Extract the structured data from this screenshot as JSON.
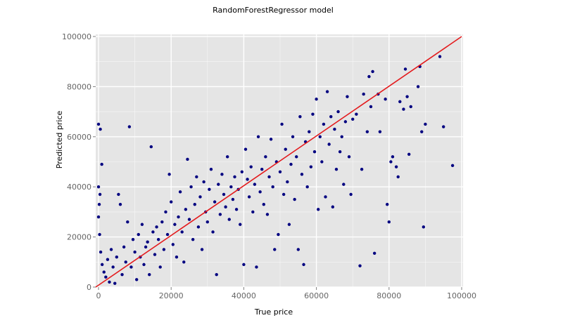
{
  "chart_data": {
    "type": "scatter",
    "title": "RandomForestRegressor model",
    "xlabel": "True price",
    "ylabel": "Predicted price",
    "xlim": [
      0,
      100000
    ],
    "ylim": [
      0,
      100000
    ],
    "x_ticks": [
      0,
      20000,
      40000,
      60000,
      80000,
      100000
    ],
    "y_ticks": [
      0,
      20000,
      40000,
      60000,
      80000,
      100000
    ],
    "x_tick_labels": [
      "0",
      "20000",
      "40000",
      "60000",
      "80000",
      "100000"
    ],
    "y_tick_labels": [
      "0",
      "20000",
      "40000",
      "60000",
      "80000",
      "100000"
    ],
    "grid": true,
    "legend": "none",
    "colors": {
      "points": "#000080",
      "reference_line": "#e41a1c",
      "panel": "#e5e5e5",
      "grid": "#ffffff"
    },
    "reference_line": {
      "x": [
        0,
        100000
      ],
      "y": [
        0,
        100000
      ]
    },
    "series": [
      {
        "values_xy": [
          [
            0,
            65000
          ],
          [
            500,
            63000
          ],
          [
            900,
            49000
          ],
          [
            0,
            40000
          ],
          [
            400,
            37000
          ],
          [
            200,
            33000
          ],
          [
            0,
            28000
          ],
          [
            300,
            21000
          ],
          [
            600,
            14000
          ],
          [
            1000,
            9000
          ],
          [
            1500,
            6000
          ],
          [
            2000,
            4000
          ],
          [
            2500,
            11000
          ],
          [
            3000,
            2000
          ],
          [
            3500,
            15000
          ],
          [
            4000,
            8000
          ],
          [
            4500,
            1500
          ],
          [
            5000,
            12000
          ],
          [
            5500,
            37000
          ],
          [
            6000,
            33000
          ],
          [
            6500,
            5000
          ],
          [
            7000,
            16000
          ],
          [
            7500,
            10000
          ],
          [
            8000,
            26000
          ],
          [
            8500,
            64000
          ],
          [
            9000,
            8000
          ],
          [
            9500,
            19000
          ],
          [
            10000,
            14000
          ],
          [
            10500,
            3000
          ],
          [
            11000,
            21000
          ],
          [
            11500,
            12000
          ],
          [
            12000,
            25000
          ],
          [
            12500,
            9000
          ],
          [
            13000,
            16000
          ],
          [
            13500,
            18000
          ],
          [
            14000,
            5000
          ],
          [
            14500,
            56000
          ],
          [
            15000,
            22000
          ],
          [
            15500,
            13000
          ],
          [
            16000,
            24000
          ],
          [
            16500,
            19000
          ],
          [
            17000,
            8000
          ],
          [
            17500,
            26000
          ],
          [
            18000,
            15000
          ],
          [
            18500,
            30000
          ],
          [
            19000,
            21000
          ],
          [
            19500,
            45000
          ],
          [
            20000,
            34000
          ],
          [
            20500,
            17000
          ],
          [
            21000,
            25000
          ],
          [
            21500,
            12000
          ],
          [
            22000,
            28000
          ],
          [
            22500,
            38000
          ],
          [
            23000,
            22000
          ],
          [
            23500,
            10000
          ],
          [
            24000,
            31000
          ],
          [
            24500,
            51000
          ],
          [
            25000,
            27000
          ],
          [
            25500,
            40000
          ],
          [
            26000,
            19000
          ],
          [
            26500,
            33000
          ],
          [
            27000,
            44000
          ],
          [
            27500,
            24000
          ],
          [
            28000,
            36000
          ],
          [
            28500,
            15000
          ],
          [
            29000,
            42000
          ],
          [
            29500,
            30000
          ],
          [
            30000,
            26000
          ],
          [
            30500,
            39000
          ],
          [
            31000,
            47000
          ],
          [
            31500,
            22000
          ],
          [
            32000,
            34000
          ],
          [
            32500,
            5000
          ],
          [
            33000,
            41000
          ],
          [
            33500,
            29000
          ],
          [
            34000,
            45000
          ],
          [
            34500,
            37000
          ],
          [
            35000,
            32000
          ],
          [
            35500,
            52000
          ],
          [
            36000,
            27000
          ],
          [
            36500,
            40000
          ],
          [
            37000,
            35000
          ],
          [
            37500,
            44000
          ],
          [
            38000,
            31000
          ],
          [
            38500,
            39000
          ],
          [
            39000,
            25000
          ],
          [
            39500,
            46000
          ],
          [
            40000,
            9000
          ],
          [
            40500,
            55000
          ],
          [
            41000,
            43000
          ],
          [
            41500,
            36000
          ],
          [
            42000,
            48000
          ],
          [
            42500,
            30000
          ],
          [
            43000,
            41000
          ],
          [
            43500,
            8000
          ],
          [
            44000,
            60000
          ],
          [
            44500,
            38000
          ],
          [
            45000,
            47000
          ],
          [
            45500,
            33000
          ],
          [
            46000,
            52000
          ],
          [
            46500,
            29000
          ],
          [
            47000,
            44000
          ],
          [
            47500,
            59000
          ],
          [
            48000,
            40000
          ],
          [
            48500,
            15000
          ],
          [
            49000,
            50000
          ],
          [
            49500,
            21000
          ],
          [
            50000,
            46000
          ],
          [
            50500,
            65000
          ],
          [
            51000,
            37000
          ],
          [
            51500,
            55000
          ],
          [
            52000,
            42000
          ],
          [
            52500,
            25000
          ],
          [
            53000,
            49000
          ],
          [
            53500,
            60000
          ],
          [
            54000,
            35000
          ],
          [
            54500,
            52000
          ],
          [
            55000,
            15000
          ],
          [
            55500,
            68000
          ],
          [
            56000,
            45000
          ],
          [
            56500,
            9000
          ],
          [
            57000,
            58000
          ],
          [
            57500,
            40000
          ],
          [
            58000,
            62000
          ],
          [
            58500,
            48000
          ],
          [
            59000,
            69000
          ],
          [
            59500,
            54000
          ],
          [
            60000,
            75000
          ],
          [
            60500,
            31000
          ],
          [
            61000,
            60000
          ],
          [
            61500,
            50000
          ],
          [
            62000,
            65000
          ],
          [
            62500,
            36000
          ],
          [
            63000,
            78000
          ],
          [
            63500,
            57000
          ],
          [
            64000,
            68000
          ],
          [
            64500,
            32000
          ],
          [
            65000,
            63000
          ],
          [
            65500,
            47000
          ],
          [
            66000,
            70000
          ],
          [
            66500,
            54000
          ],
          [
            67000,
            60000
          ],
          [
            67500,
            41000
          ],
          [
            68000,
            66000
          ],
          [
            68500,
            76000
          ],
          [
            69000,
            52000
          ],
          [
            69500,
            37000
          ],
          [
            70000,
            67000
          ],
          [
            71000,
            69000
          ],
          [
            72000,
            8500
          ],
          [
            72500,
            47000
          ],
          [
            73000,
            77000
          ],
          [
            74000,
            62000
          ],
          [
            74500,
            84000
          ],
          [
            75000,
            72000
          ],
          [
            75500,
            86000
          ],
          [
            76000,
            13500
          ],
          [
            77000,
            77000
          ],
          [
            77500,
            62000
          ],
          [
            79000,
            75000
          ],
          [
            79500,
            33000
          ],
          [
            80000,
            26000
          ],
          [
            80500,
            50000
          ],
          [
            81000,
            52000
          ],
          [
            82000,
            48000
          ],
          [
            82500,
            44000
          ],
          [
            83000,
            74000
          ],
          [
            84000,
            71000
          ],
          [
            84500,
            87000
          ],
          [
            85000,
            76000
          ],
          [
            85500,
            53000
          ],
          [
            86000,
            72000
          ],
          [
            88000,
            80000
          ],
          [
            88500,
            88000
          ],
          [
            89000,
            62000
          ],
          [
            89500,
            24000
          ],
          [
            90000,
            65000
          ],
          [
            94000,
            92000
          ],
          [
            95000,
            64000
          ],
          [
            97500,
            48500
          ]
        ]
      }
    ]
  }
}
